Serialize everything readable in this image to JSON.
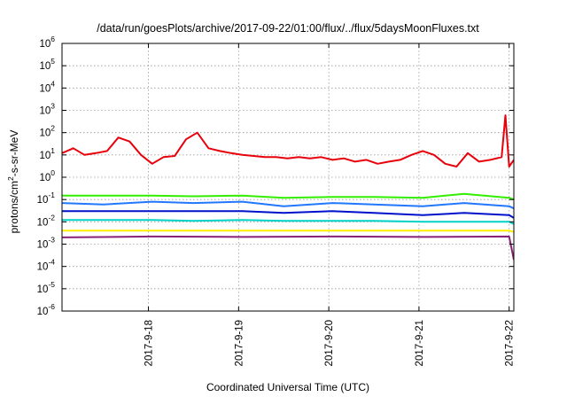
{
  "chart_data": {
    "type": "line",
    "title": "/data/run/goesPlots/archive/2017-09-22/01:00/flux/../flux/5daysMoonFluxes.txt",
    "xlabel": "Coordinated Universal Time (UTC)",
    "ylabel_parts": {
      "pre": "protons/cm",
      "sup": "2",
      "post": "-s-sr-MeV"
    },
    "yscale": "log",
    "ylim": [
      1e-06,
      1000000.0
    ],
    "xlim_days": [
      "2017-09-17 01:00",
      "2017-09-22 01:15"
    ],
    "xticks": [
      {
        "label": "2017-9-18",
        "value": "2017-09-18"
      },
      {
        "label": "2017-9-19",
        "value": "2017-09-19"
      },
      {
        "label": "2017-9-20",
        "value": "2017-09-20"
      },
      {
        "label": "2017-9-21",
        "value": "2017-09-21"
      },
      {
        "label": "2017-9-22",
        "value": "2017-09-22"
      }
    ],
    "yticks": [
      {
        "base": "10",
        "exp": "-6"
      },
      {
        "base": "10",
        "exp": "-5"
      },
      {
        "base": "10",
        "exp": "-4"
      },
      {
        "base": "10",
        "exp": "-3"
      },
      {
        "base": "10",
        "exp": "-2"
      },
      {
        "base": "10",
        "exp": "-1"
      },
      {
        "base": "10",
        "exp": "0"
      },
      {
        "base": "10",
        "exp": "1"
      },
      {
        "base": "10",
        "exp": "2"
      },
      {
        "base": "10",
        "exp": "3"
      },
      {
        "base": "10",
        "exp": "4"
      },
      {
        "base": "10",
        "exp": "5"
      },
      {
        "base": "10",
        "exp": "6"
      }
    ],
    "grid": true,
    "series": [
      {
        "color": "#e8000b",
        "points": [
          [
            "2017-09-17 01:00",
            12
          ],
          [
            "2017-09-17 04:00",
            20
          ],
          [
            "2017-09-17 07:00",
            10
          ],
          [
            "2017-09-17 10:00",
            12
          ],
          [
            "2017-09-17 13:00",
            15
          ],
          [
            "2017-09-17 16:00",
            60
          ],
          [
            "2017-09-17 19:00",
            40
          ],
          [
            "2017-09-17 22:00",
            10
          ],
          [
            "2017-09-18 01:00",
            4
          ],
          [
            "2017-09-18 04:00",
            8
          ],
          [
            "2017-09-18 07:00",
            9
          ],
          [
            "2017-09-18 10:00",
            50
          ],
          [
            "2017-09-18 13:00",
            100
          ],
          [
            "2017-09-18 16:00",
            20
          ],
          [
            "2017-09-18 19:00",
            15
          ],
          [
            "2017-09-18 22:00",
            12
          ],
          [
            "2017-09-19 01:00",
            10
          ],
          [
            "2017-09-19 04:00",
            9
          ],
          [
            "2017-09-19 07:00",
            8
          ],
          [
            "2017-09-19 10:00",
            8
          ],
          [
            "2017-09-19 13:00",
            7
          ],
          [
            "2017-09-19 16:00",
            8
          ],
          [
            "2017-09-19 19:00",
            7
          ],
          [
            "2017-09-19 22:00",
            8
          ],
          [
            "2017-09-20 01:00",
            6
          ],
          [
            "2017-09-20 04:00",
            7
          ],
          [
            "2017-09-20 07:00",
            5
          ],
          [
            "2017-09-20 10:00",
            6
          ],
          [
            "2017-09-20 13:00",
            4
          ],
          [
            "2017-09-20 16:00",
            5
          ],
          [
            "2017-09-20 19:00",
            6
          ],
          [
            "2017-09-20 22:00",
            10
          ],
          [
            "2017-09-21 01:00",
            15
          ],
          [
            "2017-09-21 04:00",
            10
          ],
          [
            "2017-09-21 07:00",
            4
          ],
          [
            "2017-09-21 10:00",
            3
          ],
          [
            "2017-09-21 13:00",
            12
          ],
          [
            "2017-09-21 16:00",
            5
          ],
          [
            "2017-09-21 19:00",
            6
          ],
          [
            "2017-09-21 22:00",
            8
          ],
          [
            "2017-09-21 23:00",
            600
          ],
          [
            "2017-09-22 00:00",
            3
          ],
          [
            "2017-09-22 01:15",
            6
          ]
        ]
      },
      {
        "color": "#33ee00",
        "points": [
          [
            "2017-09-17 01:00",
            0.15
          ],
          [
            "2017-09-17 12:00",
            0.15
          ],
          [
            "2017-09-18 01:00",
            0.15
          ],
          [
            "2017-09-18 12:00",
            0.14
          ],
          [
            "2017-09-19 01:00",
            0.15
          ],
          [
            "2017-09-19 12:00",
            0.12
          ],
          [
            "2017-09-20 01:00",
            0.13
          ],
          [
            "2017-09-20 12:00",
            0.13
          ],
          [
            "2017-09-21 01:00",
            0.12
          ],
          [
            "2017-09-21 12:00",
            0.18
          ],
          [
            "2017-09-22 00:00",
            0.12
          ],
          [
            "2017-09-22 01:15",
            0.1
          ]
        ]
      },
      {
        "color": "#2277ff",
        "points": [
          [
            "2017-09-17 01:00",
            0.07
          ],
          [
            "2017-09-17 12:00",
            0.06
          ],
          [
            "2017-09-18 01:00",
            0.08
          ],
          [
            "2017-09-18 12:00",
            0.07
          ],
          [
            "2017-09-19 01:00",
            0.08
          ],
          [
            "2017-09-19 12:00",
            0.05
          ],
          [
            "2017-09-20 01:00",
            0.07
          ],
          [
            "2017-09-20 12:00",
            0.06
          ],
          [
            "2017-09-21 01:00",
            0.05
          ],
          [
            "2017-09-21 12:00",
            0.07
          ],
          [
            "2017-09-22 00:00",
            0.05
          ],
          [
            "2017-09-22 01:15",
            0.04
          ]
        ]
      },
      {
        "color": "#0011cc",
        "points": [
          [
            "2017-09-17 01:00",
            0.03
          ],
          [
            "2017-09-17 12:00",
            0.03
          ],
          [
            "2017-09-18 01:00",
            0.03
          ],
          [
            "2017-09-18 12:00",
            0.03
          ],
          [
            "2017-09-19 01:00",
            0.03
          ],
          [
            "2017-09-19 12:00",
            0.025
          ],
          [
            "2017-09-20 01:00",
            0.03
          ],
          [
            "2017-09-20 12:00",
            0.025
          ],
          [
            "2017-09-21 01:00",
            0.02
          ],
          [
            "2017-09-21 12:00",
            0.025
          ],
          [
            "2017-09-22 00:00",
            0.02
          ],
          [
            "2017-09-22 01:15",
            0.015
          ]
        ]
      },
      {
        "color": "#00d2c8",
        "points": [
          [
            "2017-09-17 01:00",
            0.012
          ],
          [
            "2017-09-17 12:00",
            0.012
          ],
          [
            "2017-09-18 01:00",
            0.012
          ],
          [
            "2017-09-18 12:00",
            0.011
          ],
          [
            "2017-09-19 01:00",
            0.012
          ],
          [
            "2017-09-19 12:00",
            0.011
          ],
          [
            "2017-09-20 01:00",
            0.011
          ],
          [
            "2017-09-20 12:00",
            0.011
          ],
          [
            "2017-09-21 01:00",
            0.01
          ],
          [
            "2017-09-21 12:00",
            0.01
          ],
          [
            "2017-09-22 00:00",
            0.01
          ],
          [
            "2017-09-22 01:15",
            0.008
          ]
        ]
      },
      {
        "color": "#ffee00",
        "points": [
          [
            "2017-09-17 01:00",
            0.004
          ],
          [
            "2017-09-18 01:00",
            0.004
          ],
          [
            "2017-09-19 01:00",
            0.004
          ],
          [
            "2017-09-20 01:00",
            0.004
          ],
          [
            "2017-09-21 01:00",
            0.004
          ],
          [
            "2017-09-22 00:00",
            0.004
          ],
          [
            "2017-09-22 01:15",
            0.0035
          ]
        ]
      },
      {
        "color": "#882277",
        "points": [
          [
            "2017-09-17 01:00",
            0.002
          ],
          [
            "2017-09-18 01:00",
            0.0022
          ],
          [
            "2017-09-19 01:00",
            0.0021
          ],
          [
            "2017-09-20 01:00",
            0.0022
          ],
          [
            "2017-09-21 01:00",
            0.0021
          ],
          [
            "2017-09-22 00:00",
            0.0022
          ],
          [
            "2017-09-22 01:15",
            0.0002
          ]
        ]
      }
    ]
  }
}
